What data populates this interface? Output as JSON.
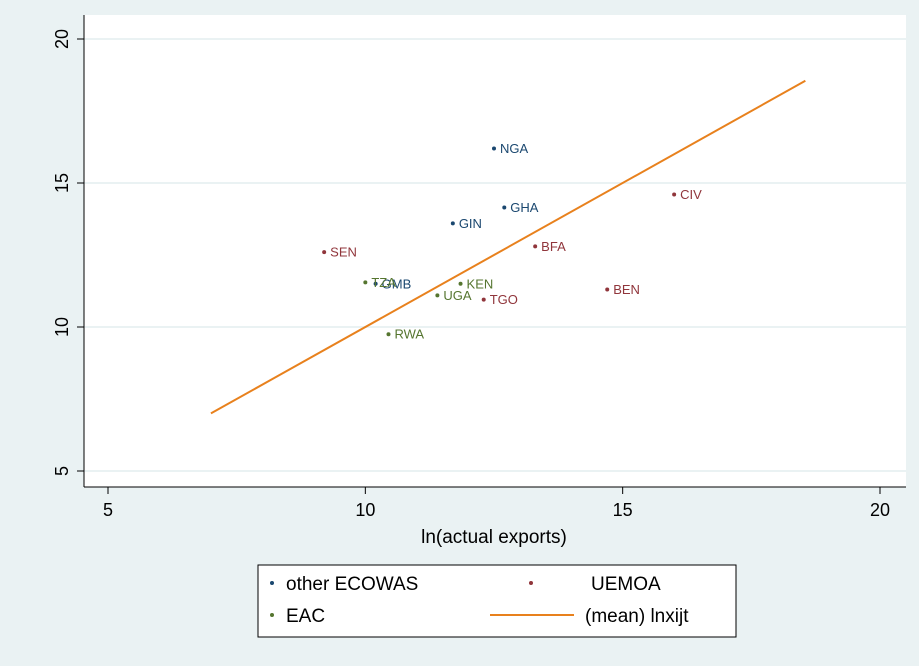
{
  "chart_data": {
    "type": "scatter",
    "xlabel": "ln(actual exports)",
    "ylabel": "",
    "xlim": [
      5,
      20
    ],
    "ylim": [
      5,
      20
    ],
    "xticks": [
      5,
      10,
      15,
      20
    ],
    "yticks": [
      5,
      10,
      15,
      20
    ],
    "grid": "horizontal",
    "legend_position": "bottom",
    "series": [
      {
        "name": "other ECOWAS",
        "color": "#1a476f",
        "points": [
          {
            "label": "NGA",
            "x": 12.5,
            "y": 16.2
          },
          {
            "label": "GHA",
            "x": 12.7,
            "y": 14.15
          },
          {
            "label": "GIN",
            "x": 11.7,
            "y": 13.6
          },
          {
            "label": "GMB",
            "x": 10.2,
            "y": 11.5
          }
        ]
      },
      {
        "name": "UEMOA",
        "color": "#90353b",
        "points": [
          {
            "label": "CIV",
            "x": 16.0,
            "y": 14.6
          },
          {
            "label": "SEN",
            "x": 9.2,
            "y": 12.6
          },
          {
            "label": "BFA",
            "x": 13.3,
            "y": 12.8
          },
          {
            "label": "BEN",
            "x": 14.7,
            "y": 11.3
          },
          {
            "label": "TGO",
            "x": 12.3,
            "y": 10.95
          }
        ]
      },
      {
        "name": "EAC",
        "color": "#55752f",
        "points": [
          {
            "label": "TZA",
            "x": 10.0,
            "y": 11.55
          },
          {
            "label": "KEN",
            "x": 11.85,
            "y": 11.5
          },
          {
            "label": "UGA",
            "x": 11.4,
            "y": 11.1
          },
          {
            "label": "RWA",
            "x": 10.45,
            "y": 9.75
          }
        ]
      }
    ],
    "line_series": {
      "name": "(mean) lnxijt",
      "color": "#e8811d",
      "points": [
        [
          7.0,
          7.0
        ],
        [
          18.55,
          18.55
        ]
      ]
    }
  }
}
